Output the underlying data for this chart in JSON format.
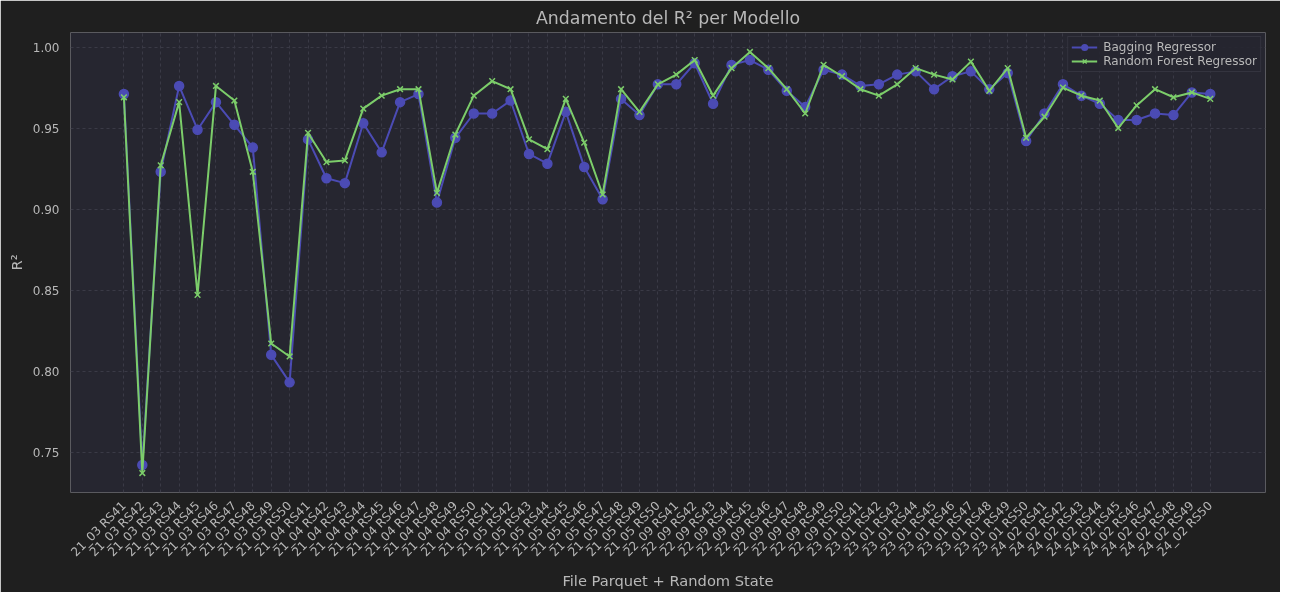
{
  "chart_data": {
    "type": "line",
    "title": "Andamento del R² per Modello",
    "xlabel": "File Parquet + Random State",
    "ylabel": "R²",
    "categories": [
      "21_03 RS41",
      "21_03 RS42",
      "21_03 RS43",
      "21_03 RS44",
      "21_03 RS45",
      "21_03 RS46",
      "21_03 RS47",
      "21_03 RS48",
      "21_03 RS49",
      "21_03 RS50",
      "21_04 RS41",
      "21_04 RS42",
      "21_04 RS43",
      "21_04 RS44",
      "21_04 RS45",
      "21_04 RS46",
      "21_04 RS47",
      "21_04 RS48",
      "21_04 RS49",
      "21_04 RS50",
      "21_05 RS41",
      "21_05 RS42",
      "21_05 RS43",
      "21_05 RS44",
      "21_05 RS45",
      "21_05 RS46",
      "21_05 RS47",
      "21_05 RS48",
      "21_05 RS49",
      "21_05 RS50",
      "22_09 RS41",
      "22_09 RS42",
      "22_09 RS43",
      "22_09 RS44",
      "22_09 RS45",
      "22_09 RS46",
      "22_09 RS47",
      "22_09 RS48",
      "22_09 RS49",
      "22_09 RS50",
      "23_01 RS41",
      "23_01 RS42",
      "23_01 RS43",
      "23_01 RS44",
      "23_01 RS45",
      "23_01 RS46",
      "23_01 RS47",
      "23_01 RS48",
      "23_01 RS49",
      "23_01 RS50",
      "24_02 RS41",
      "24_02 RS42",
      "24_02 RS43",
      "24_02 RS44",
      "24_02 RS45",
      "24_02 RS46",
      "24_02 RS47",
      "24_02 RS48",
      "24_02 RS49",
      "24_02 RS50"
    ],
    "series": [
      {
        "name": "Bagging Regressor",
        "color": "#4b4bb4",
        "marker": "circle",
        "values": [
          0.971,
          0.742,
          0.923,
          0.976,
          0.949,
          0.966,
          0.952,
          0.938,
          0.81,
          0.793,
          0.943,
          0.919,
          0.916,
          0.953,
          0.935,
          0.966,
          0.971,
          0.904,
          0.944,
          0.959,
          0.959,
          0.967,
          0.934,
          0.928,
          0.96,
          0.926,
          0.906,
          0.968,
          0.958,
          0.977,
          0.977,
          0.99,
          0.965,
          0.989,
          0.992,
          0.986,
          0.973,
          0.963,
          0.986,
          0.983,
          0.976,
          0.977,
          0.983,
          0.985,
          0.974,
          0.982,
          0.985,
          0.974,
          0.984,
          0.942,
          0.959,
          0.977,
          0.97,
          0.965,
          0.955,
          0.955,
          0.959,
          0.958,
          0.972,
          0.971
        ]
      },
      {
        "name": "Random Forest Regressor",
        "color": "#7ccd6a",
        "marker": "cross",
        "values": [
          0.969,
          0.737,
          0.927,
          0.966,
          0.847,
          0.976,
          0.967,
          0.923,
          0.817,
          0.809,
          0.947,
          0.929,
          0.93,
          0.962,
          0.97,
          0.974,
          0.974,
          0.91,
          0.946,
          0.97,
          0.979,
          0.974,
          0.943,
          0.937,
          0.968,
          0.941,
          0.909,
          0.974,
          0.96,
          0.977,
          0.983,
          0.992,
          0.97,
          0.987,
          0.997,
          0.987,
          0.974,
          0.959,
          0.989,
          0.982,
          0.974,
          0.97,
          0.977,
          0.987,
          0.983,
          0.98,
          0.991,
          0.973,
          0.987,
          0.944,
          0.957,
          0.975,
          0.97,
          0.967,
          0.95,
          0.964,
          0.974,
          0.969,
          0.972,
          0.968
        ]
      }
    ],
    "ylim": [
      0.725,
      1.009
    ],
    "yticks": [
      0.75,
      {
        "value": 0.8,
        "label": "0.80"
      },
      0.85,
      {
        "value": 0.9,
        "label": "0.90"
      },
      0.95,
      {
        "value": 1.0,
        "label": "1.00"
      }
    ],
    "grid": true,
    "legend": "top right"
  }
}
